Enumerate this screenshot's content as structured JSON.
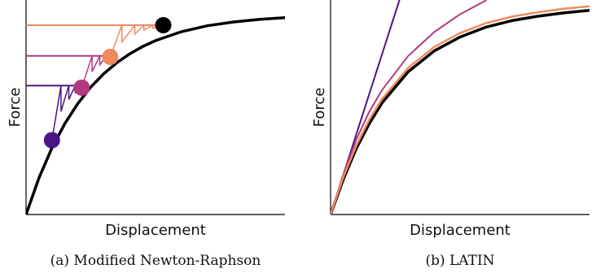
{
  "colors": {
    "black": "#000000",
    "dark_purple": "#4b1585",
    "magenta": "#b03a7c",
    "orange": "#f08a5e"
  },
  "chart_data": [
    {
      "type": "line",
      "subplot": "a",
      "caption": "(a) Modified Newton-Raphson",
      "xlabel": "Displacement",
      "ylabel": "Force",
      "xticks": [],
      "yticks": [],
      "curve": {
        "color": "#000000",
        "x": [
          0.0,
          0.05,
          0.1,
          0.15,
          0.2,
          0.25,
          0.3,
          0.35,
          0.4,
          0.45,
          0.5,
          0.6,
          0.7,
          0.8,
          0.9,
          1.0
        ],
        "y": [
          0.0,
          0.185,
          0.336,
          0.459,
          0.56,
          0.643,
          0.71,
          0.765,
          0.81,
          0.847,
          0.877,
          0.922,
          0.952,
          0.971,
          0.984,
          0.993
        ]
      },
      "load_levels": [
        {
          "color": "#4b1585",
          "y": 0.65
        },
        {
          "color": "#b03a7c",
          "y": 0.8
        },
        {
          "color": "#f08a5e",
          "y": 0.955
        }
      ],
      "points": [
        {
          "color": "#4b1585",
          "x": 0.1,
          "y": 0.375
        },
        {
          "color": "#b03a7c",
          "x": 0.215,
          "y": 0.64
        },
        {
          "color": "#f08a5e",
          "x": 0.325,
          "y": 0.795
        },
        {
          "color": "#000000",
          "x": 0.53,
          "y": 0.955
        }
      ],
      "iterations": [
        {
          "color": "#4b1585",
          "x": [
            0.1,
            0.135,
            0.135,
            0.165,
            0.165,
            0.19,
            0.19,
            0.215
          ],
          "y": [
            0.375,
            0.65,
            0.52,
            0.65,
            0.58,
            0.65,
            0.615,
            0.65
          ]
        },
        {
          "color": "#b03a7c",
          "x": [
            0.215,
            0.255,
            0.255,
            0.285,
            0.285,
            0.31,
            0.31,
            0.325
          ],
          "y": [
            0.64,
            0.8,
            0.72,
            0.8,
            0.755,
            0.8,
            0.78,
            0.8
          ]
        },
        {
          "color": "#f08a5e",
          "x": [
            0.325,
            0.37,
            0.37,
            0.42,
            0.42,
            0.455,
            0.455,
            0.49,
            0.49,
            0.53
          ],
          "y": [
            0.795,
            0.955,
            0.87,
            0.955,
            0.91,
            0.955,
            0.93,
            0.955,
            0.94,
            0.955
          ]
        }
      ]
    },
    {
      "type": "line",
      "subplot": "b",
      "caption": "(b) LATIN",
      "xlabel": "Displacement",
      "ylabel": "Force",
      "xticks": [],
      "yticks": [],
      "series": [
        {
          "color": "#4b1585",
          "x": [
            0.0,
            0.3
          ],
          "y": [
            0.0,
            1.22
          ]
        },
        {
          "color": "#b03a7c",
          "x": [
            0.0,
            0.05,
            0.1,
            0.15,
            0.2,
            0.3,
            0.4,
            0.5,
            0.6
          ],
          "y": [
            0.0,
            0.205,
            0.38,
            0.52,
            0.63,
            0.8,
            0.92,
            1.01,
            1.08
          ]
        },
        {
          "color": "#f08a5e",
          "x": [
            0.0,
            0.05,
            0.1,
            0.15,
            0.2,
            0.3,
            0.4,
            0.5,
            0.6,
            0.7,
            0.8,
            0.9,
            1.0
          ],
          "y": [
            0.0,
            0.19,
            0.35,
            0.48,
            0.585,
            0.74,
            0.845,
            0.915,
            0.965,
            0.998,
            1.02,
            1.038,
            1.05
          ]
        },
        {
          "color": "#000000",
          "x": [
            0.0,
            0.05,
            0.1,
            0.15,
            0.2,
            0.3,
            0.4,
            0.5,
            0.6,
            0.7,
            0.8,
            0.9,
            1.0
          ],
          "y": [
            0.0,
            0.18,
            0.335,
            0.46,
            0.565,
            0.72,
            0.825,
            0.895,
            0.945,
            0.978,
            1.0,
            1.017,
            1.03
          ]
        }
      ]
    }
  ]
}
